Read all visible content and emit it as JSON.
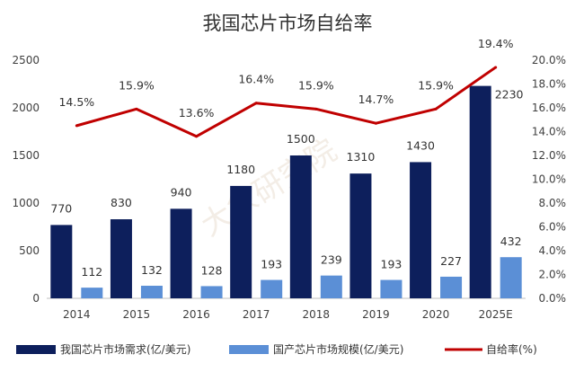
{
  "chart_data": {
    "type": "bar",
    "title": "我国芯片市场自给率",
    "categories": [
      "2014",
      "2015",
      "2016",
      "2017",
      "2018",
      "2019",
      "2020",
      "2025E"
    ],
    "series": [
      {
        "name": "我国芯片市场需求(亿/美元)",
        "type": "bar",
        "axis": "left",
        "color": "#0d1f5c",
        "values": [
          770,
          830,
          940,
          1180,
          1500,
          1310,
          1430,
          2230
        ]
      },
      {
        "name": "国产芯片市场规模(亿/美元)",
        "type": "bar",
        "axis": "left",
        "color": "#5b8fd6",
        "values": [
          112,
          132,
          128,
          193,
          239,
          193,
          227,
          432
        ]
      },
      {
        "name": "自给率(%)",
        "type": "line",
        "axis": "right",
        "color": "#c00000",
        "values": [
          14.5,
          15.9,
          13.6,
          16.4,
          15.9,
          14.7,
          15.9,
          19.4
        ],
        "labels": [
          "14.5%",
          "15.9%",
          "13.6%",
          "16.4%",
          "15.9%",
          "14.7%",
          "15.9%",
          "19.4%"
        ]
      }
    ],
    "y_left": {
      "min": 0,
      "max": 2500,
      "ticks": [
        "0",
        "500",
        "1000",
        "1500",
        "2000",
        "2500"
      ]
    },
    "y_right": {
      "min": 0,
      "max": 20,
      "ticks": [
        "0.0%",
        "2.0%",
        "4.0%",
        "6.0%",
        "8.0%",
        "10.0%",
        "12.0%",
        "14.0%",
        "16.0%",
        "18.0%",
        "20.0%"
      ]
    },
    "grid": false,
    "legend": "bottom",
    "watermark": "大象研究院"
  }
}
